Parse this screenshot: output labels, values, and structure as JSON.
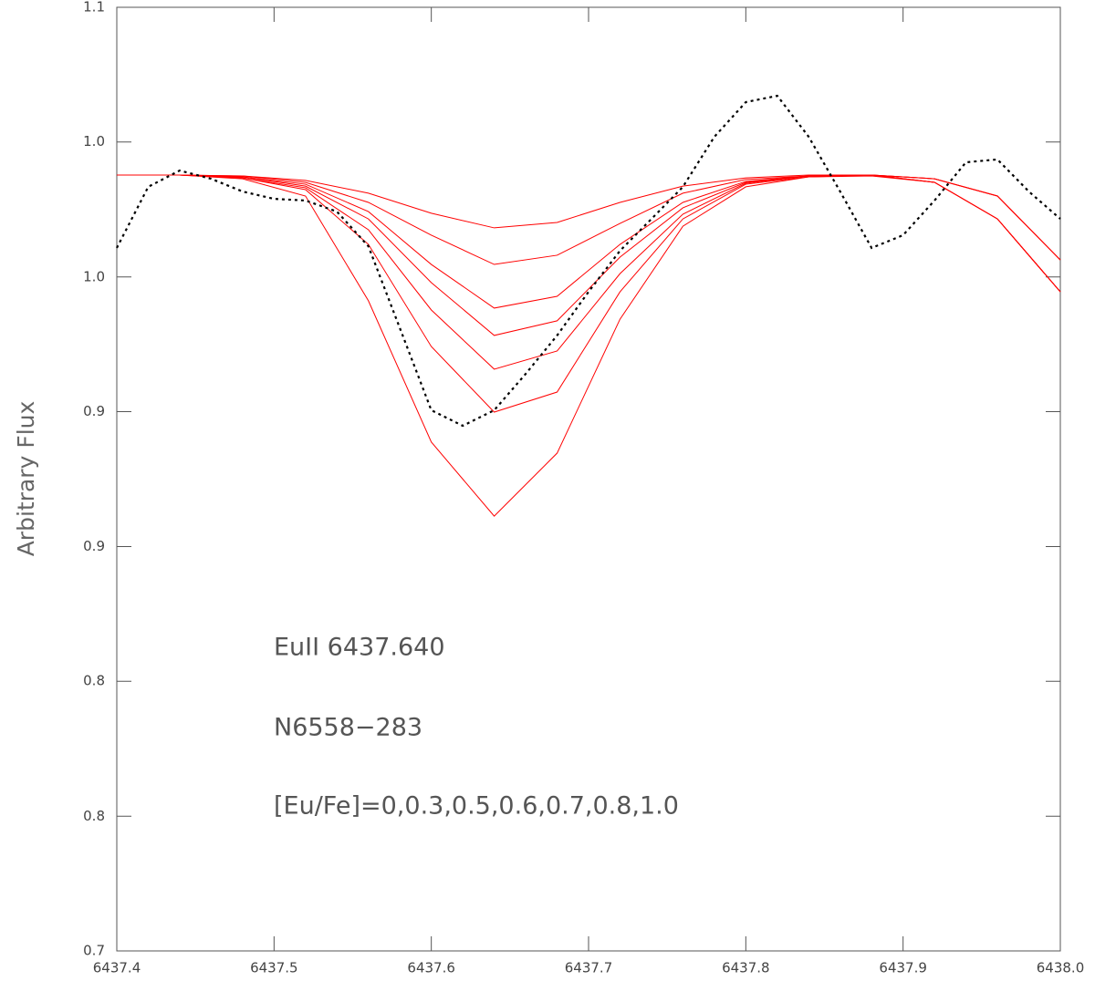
{
  "chart_data": {
    "type": "line",
    "ylabel": "Arbitrary Flux",
    "annotations": [
      "EuII 6437.640",
      "N6558−283",
      "[Eu/Fe]=0,0.3,0.5,0.6,0.7,0.8,1.0"
    ],
    "xlim": [
      6437.4,
      6438.0
    ],
    "xticks": [
      6437.4,
      6437.5,
      6437.6,
      6437.7,
      6437.8,
      6437.9,
      {
        "value": 6438.0,
        "label": "6438.0"
      }
    ],
    "ylim": [
      0.7,
      1.1
    ],
    "yticks": [
      {
        "value": 1.1,
        "label": "1.1"
      },
      {
        "value": 1.0429,
        "label": "1.0"
      },
      {
        "value": 0.9857,
        "label": "1.0"
      },
      {
        "value": 0.9286,
        "label": "0.9"
      },
      {
        "value": 0.8714,
        "label": "0.9"
      },
      {
        "value": 0.8143,
        "label": "0.8"
      },
      {
        "value": 0.7571,
        "label": "0.8"
      },
      {
        "value": 0.7,
        "label": "0.7"
      }
    ],
    "series": [
      {
        "color": "#ff0000",
        "style": "solid",
        "x": [
          6437.4,
          6437.44,
          6437.48,
          6437.52,
          6437.56,
          6437.6,
          6437.64,
          6437.68,
          6437.72,
          6437.76,
          6437.8,
          6437.84,
          6437.88,
          6437.92,
          6437.96,
          6438.0
        ],
        "values": [
          1.0289,
          1.0289,
          1.0285,
          1.0266,
          1.0212,
          1.0127,
          1.0065,
          1.0088,
          1.0173,
          1.0242,
          1.0277,
          1.0289,
          1.0289,
          1.0273,
          1.02,
          0.9929
        ]
      },
      {
        "color": "#ff0000",
        "style": "solid",
        "x": [
          6437.4,
          6437.44,
          6437.48,
          6437.52,
          6437.56,
          6437.6,
          6437.64,
          6437.68,
          6437.72,
          6437.76,
          6437.8,
          6437.84,
          6437.88,
          6437.92,
          6437.96,
          6438.0
        ],
        "values": [
          1.0289,
          1.0289,
          1.0285,
          1.0258,
          1.0173,
          1.0034,
          0.991,
          0.9949,
          1.0084,
          1.0212,
          1.027,
          1.0285,
          1.0289,
          1.0273,
          1.02,
          0.9929
        ]
      },
      {
        "color": "#ff0000",
        "style": "solid",
        "x": [
          6437.4,
          6437.44,
          6437.48,
          6437.52,
          6437.56,
          6437.6,
          6437.64,
          6437.68,
          6437.72,
          6437.76,
          6437.8,
          6437.84,
          6437.88,
          6437.92,
          6437.96,
          6438.0
        ],
        "values": [
          1.0289,
          1.0289,
          1.0281,
          1.025,
          1.0134,
          0.991,
          0.9725,
          0.9775,
          0.9995,
          1.0173,
          1.0262,
          1.0285,
          1.0289,
          1.0273,
          1.02,
          0.9929
        ]
      },
      {
        "color": "#ff0000",
        "style": "solid",
        "x": [
          6437.4,
          6437.44,
          6437.48,
          6437.52,
          6437.56,
          6437.6,
          6437.64,
          6437.68,
          6437.72,
          6437.76,
          6437.8,
          6437.84,
          6437.88,
          6437.92,
          6437.96,
          6438.0
        ],
        "values": [
          1.0289,
          1.0289,
          1.0281,
          1.0242,
          1.0103,
          0.9833,
          0.9609,
          0.9671,
          0.9941,
          1.015,
          1.0258,
          1.0285,
          1.0289,
          1.0258,
          1.0103,
          0.9794
        ]
      },
      {
        "color": "#ff0000",
        "style": "solid",
        "x": [
          6437.4,
          6437.44,
          6437.48,
          6437.52,
          6437.56,
          6437.6,
          6437.64,
          6437.68,
          6437.72,
          6437.76,
          6437.8,
          6437.84,
          6437.88,
          6437.92,
          6437.96,
          6438.0
        ],
        "values": [
          1.0289,
          1.0289,
          1.0277,
          1.0235,
          1.0057,
          0.9717,
          0.9466,
          0.9543,
          0.9871,
          1.0123,
          1.0254,
          1.0285,
          1.0289,
          1.0258,
          1.0103,
          0.9794
        ]
      },
      {
        "color": "#ff0000",
        "style": "solid",
        "x": [
          6437.4,
          6437.44,
          6437.48,
          6437.52,
          6437.56,
          6437.6,
          6437.64,
          6437.68,
          6437.72,
          6437.76,
          6437.8,
          6437.84,
          6437.88,
          6437.92,
          6437.96,
          6438.0
        ],
        "values": [
          1.0289,
          1.0289,
          1.0277,
          1.0227,
          0.9995,
          0.9562,
          0.9284,
          0.9369,
          0.9794,
          1.0103,
          1.025,
          1.0281,
          1.0289,
          1.0258,
          1.0103,
          0.9794
        ]
      },
      {
        "color": "#ff0000",
        "style": "solid",
        "x": [
          6437.4,
          6437.44,
          6437.48,
          6437.52,
          6437.56,
          6437.6,
          6437.64,
          6437.68,
          6437.72,
          6437.76,
          6437.8,
          6437.84,
          6437.88,
          6437.92,
          6437.96,
          6438.0
        ],
        "values": [
          1.0289,
          1.0289,
          1.0273,
          1.02,
          0.9756,
          0.9157,
          0.8843,
          0.911,
          0.9678,
          1.0072,
          1.0239,
          1.0281,
          1.0285,
          1.0258,
          1.0103,
          0.9794
        ]
      },
      {
        "color": "#000000",
        "style": "dotted",
        "x": [
          6437.4,
          6437.42,
          6437.44,
          6437.46,
          6437.48,
          6437.5,
          6437.52,
          6437.54,
          6437.56,
          6437.58,
          6437.6,
          6437.62,
          6437.64,
          6437.66,
          6437.68,
          6437.7,
          6437.72,
          6437.74,
          6437.76,
          6437.78,
          6437.8,
          6437.82,
          6437.84,
          6437.86,
          6437.88,
          6437.9,
          6437.92,
          6437.94,
          6437.96,
          6437.98,
          6438.0
        ],
        "values": [
          0.998,
          1.0239,
          1.0308,
          1.0273,
          1.0219,
          1.0188,
          1.0181,
          1.0134,
          0.9987,
          0.964,
          0.9292,
          0.9226,
          0.9292,
          0.9446,
          0.9609,
          0.9794,
          0.9968,
          1.0103,
          1.0239,
          1.0451,
          1.0598,
          1.0625,
          1.0451,
          1.0219,
          0.998,
          1.0034,
          1.0181,
          1.0343,
          1.0355,
          1.0219,
          1.0103
        ]
      }
    ]
  }
}
